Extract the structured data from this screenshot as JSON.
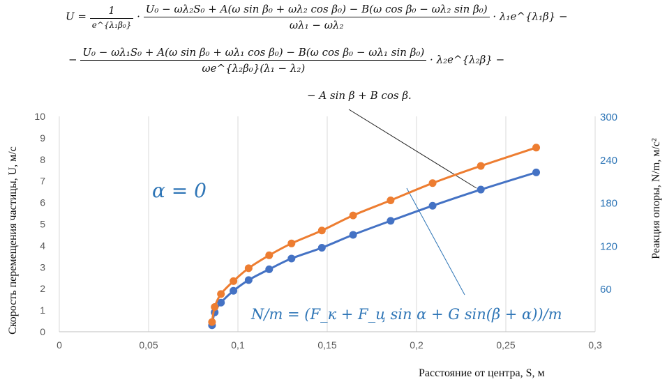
{
  "formula": {
    "line1": {
      "lhs": "U  =",
      "frac1_num": "1",
      "frac1_den": "e^{λ₁β₀}",
      "dot": "·",
      "frac2_num": "U₀ − ωλ₂S₀ + A(ω sin β₀ + ωλ₂ cos β₀) − B(ω cos β₀ − ωλ₂ sin β₀)",
      "frac2_den": "ωλ₁ − ωλ₂",
      "tail": "· λ₁e^{λ₁β} −"
    },
    "line2": {
      "lead": "−",
      "frac_num": "U₀ − ωλ₁S₀ + A(ω sin β₀ + ωλ₁ cos β₀) − B(ω cos β₀ − ωλ₁ sin β₀)",
      "frac_den": "ωe^{λ₂β₀}(λ₁ − λ₂)",
      "tail": "· λ₂e^{λ₂β} −"
    },
    "line3": "− A sin β + B cos β."
  },
  "chart_data": {
    "type": "line",
    "xlabel": "Расстояние от центра, S, м",
    "ylabel_left": "Скорость перемещения частицы, U, м/с",
    "ylabel_right": "Реакция опоры, N/m, м/с²",
    "x_ticks": [
      "0",
      "0,05",
      "0,1",
      "0,15",
      "0,2",
      "0,25",
      "0,3"
    ],
    "y_left_ticks": [
      "0",
      "1",
      "2",
      "3",
      "4",
      "5",
      "6",
      "7",
      "8",
      "9",
      "10"
    ],
    "y_right_ticks": [
      "60",
      "120",
      "180",
      "240",
      "300"
    ],
    "xlim": [
      0,
      0.3
    ],
    "ylim_left": [
      0,
      10
    ],
    "ylim_right": [
      0,
      300
    ],
    "grid": "vertical",
    "annotation_alpha": "α = 0",
    "annotation_formula": "N/m = (F_к + F_ц sin α + G sin(β + α))/m",
    "series": [
      {
        "color": "#4472C4",
        "axis": "left",
        "x": [
          0.0855,
          0.087,
          0.0905,
          0.0975,
          0.106,
          0.1175,
          0.13,
          0.147,
          0.1645,
          0.1855,
          0.209,
          0.236,
          0.267
        ],
        "y": [
          0.3,
          0.9,
          1.35,
          1.9,
          2.4,
          2.9,
          3.4,
          3.9,
          4.5,
          5.15,
          5.85,
          6.6,
          7.4
        ]
      },
      {
        "color": "#ED7D31",
        "axis": "left",
        "x": [
          0.0855,
          0.087,
          0.0905,
          0.0975,
          0.106,
          0.1175,
          0.13,
          0.147,
          0.1645,
          0.1855,
          0.209,
          0.236,
          0.267
        ],
        "y": [
          0.45,
          1.15,
          1.75,
          2.35,
          2.95,
          3.55,
          4.1,
          4.7,
          5.4,
          6.1,
          6.9,
          7.7,
          8.55
        ]
      }
    ]
  }
}
